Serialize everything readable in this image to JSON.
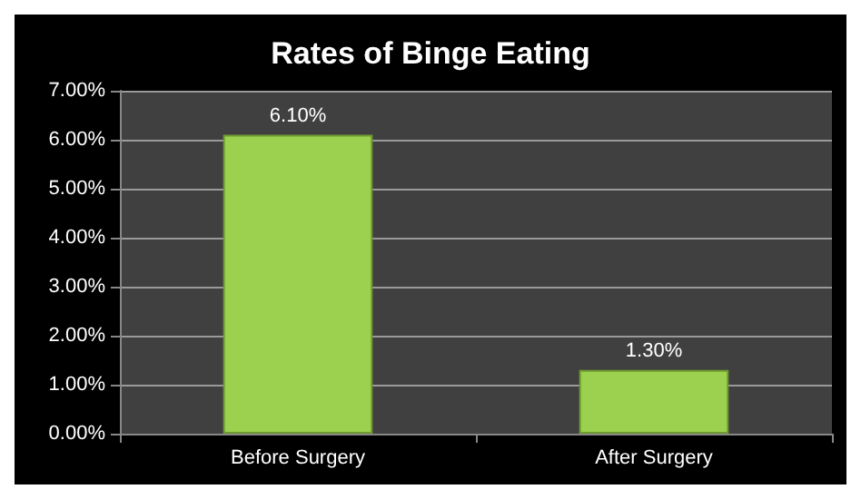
{
  "chart_data": {
    "type": "bar",
    "title": "Rates of Binge Eating",
    "categories": [
      "Before Surgery",
      "After Surgery"
    ],
    "values": [
      6.1,
      1.3
    ],
    "value_labels": [
      "6.10%",
      "1.30%"
    ],
    "color": "#9bd14f",
    "ylim": [
      0,
      7
    ],
    "yticks": [
      {
        "value": 0,
        "label": "0.00%"
      },
      {
        "value": 1,
        "label": "1.00%"
      },
      {
        "value": 2,
        "label": "2.00%"
      },
      {
        "value": 3,
        "label": "3.00%"
      },
      {
        "value": 4,
        "label": "4.00%"
      },
      {
        "value": 5,
        "label": "5.00%"
      },
      {
        "value": 6,
        "label": "6.00%"
      },
      {
        "value": 7,
        "label": "7.00%"
      }
    ],
    "grid": "y"
  }
}
